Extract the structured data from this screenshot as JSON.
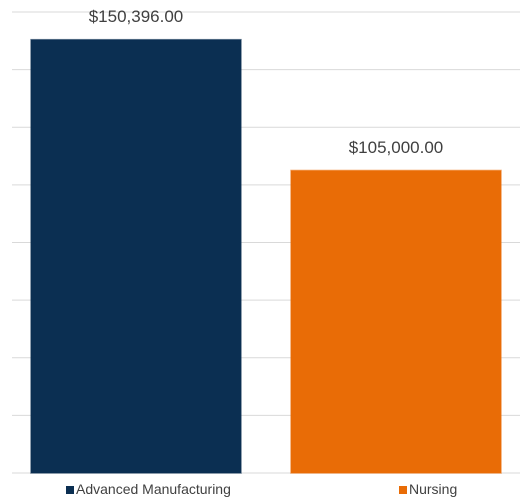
{
  "chart_data": {
    "type": "bar",
    "categories": [
      null
    ],
    "series": [
      {
        "name": "Advanced Manufacturing",
        "color": "#0b2f52",
        "values": [
          150396
        ],
        "value_labels": [
          "$150,396.00"
        ]
      },
      {
        "name": "Nursing",
        "color": "#e96c06",
        "values": [
          105000
        ],
        "value_labels": [
          "$105,000.00"
        ]
      }
    ],
    "ylim": [
      0,
      160000
    ],
    "yticks": [
      0,
      20000,
      40000,
      60000,
      80000,
      100000,
      120000,
      140000,
      160000
    ],
    "grid": true,
    "legend": "bottom"
  }
}
